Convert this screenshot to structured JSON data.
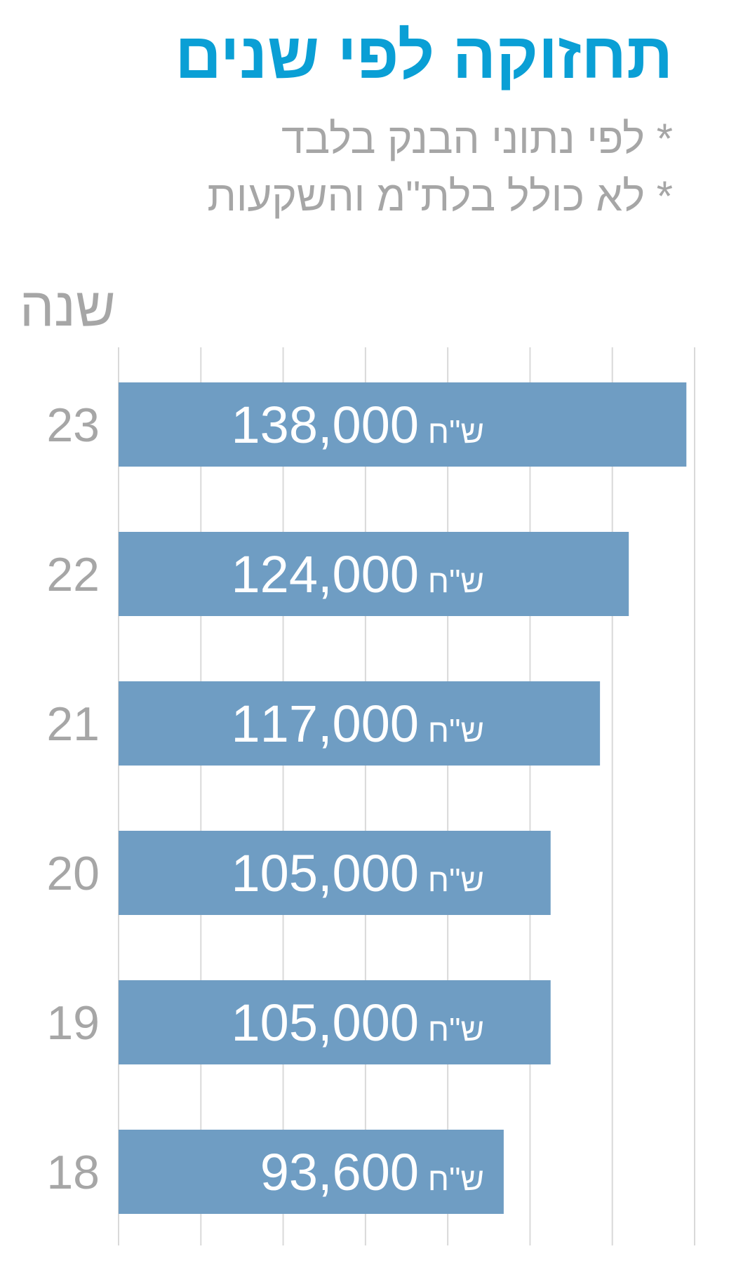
{
  "chart_data": {
    "type": "bar",
    "orientation": "horizontal",
    "title": "תחזוקה לפי שנים",
    "notes": [
      "* לפי נתוני הבנק בלבד",
      "* לא כולל בלת\"מ והשקעות"
    ],
    "ylabel": "שנה",
    "categories": [
      "23",
      "22",
      "21",
      "20",
      "19",
      "18"
    ],
    "values": [
      138000,
      124000,
      117000,
      105000,
      105000,
      93600
    ],
    "value_labels": [
      "138,000",
      "124,000",
      "117,000",
      "105,000",
      "105,000",
      "93,600"
    ],
    "unit": "ש\"ח",
    "xlim": [
      0,
      140000
    ],
    "gridlines": true,
    "bar_color": "#6f9dc3",
    "title_color": "#0a9fd5",
    "text_color": "#a6a6a6",
    "grid_color": "#d9d9d9"
  }
}
